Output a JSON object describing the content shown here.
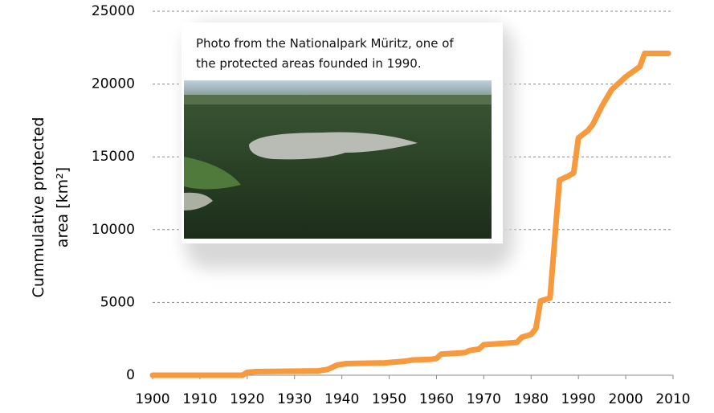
{
  "chart_data": {
    "type": "line",
    "y_label": "Cummulative protected area [km²]",
    "annotation": "Photo from the Nationalpark Müritz, one of the protected areas  founded in 1990.",
    "x": [
      1900,
      1919,
      1920,
      1922,
      1935,
      1937,
      1939,
      1941,
      1949,
      1953,
      1955,
      1959,
      1960,
      1961,
      1966,
      1967,
      1969,
      1970,
      1977,
      1978,
      1980,
      1981,
      1982,
      1984,
      1986,
      1988,
      1989,
      1990,
      1992,
      1993,
      1995,
      1997,
      2000,
      2003,
      2004,
      2009
    ],
    "series": [
      {
        "color": "#f79a3e",
        "values": [
          0,
          0,
          200,
          250,
          300,
          400,
          700,
          800,
          850,
          950,
          1050,
          1100,
          1150,
          1450,
          1550,
          1700,
          1800,
          2100,
          2250,
          2600,
          2800,
          3200,
          5100,
          5300,
          13400,
          13700,
          13900,
          16300,
          16800,
          17200,
          18500,
          19600,
          20500,
          21200,
          22100,
          22100
        ]
      }
    ],
    "xlim": [
      1900,
      2010
    ],
    "xticks": [
      1900,
      1910,
      1920,
      1930,
      1940,
      1950,
      1960,
      1970,
      1980,
      1990,
      2000,
      2010
    ],
    "ylim": [
      0,
      25000
    ],
    "yticks": [
      0,
      5000,
      10000,
      15000,
      20000,
      25000
    ],
    "grid": true
  }
}
